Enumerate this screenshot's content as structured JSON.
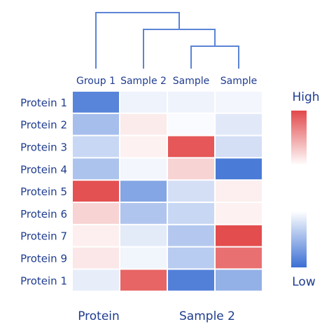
{
  "chart_data": {
    "type": "heatmap",
    "columns": [
      "Group 1",
      "Sample 2",
      "Sample",
      "Sample"
    ],
    "rows": [
      "Protein 1",
      "Protein 2",
      "Protein 3",
      "Protein 4",
      "Protein 5",
      "Protein 6",
      "Protein 7",
      "Protein 9",
      "Protein 1"
    ],
    "values": [
      [
        -0.85,
        -0.08,
        -0.08,
        -0.06
      ],
      [
        -0.45,
        0.1,
        -0.03,
        -0.15
      ],
      [
        -0.28,
        0.07,
        0.85,
        -0.22
      ],
      [
        -0.42,
        -0.06,
        0.22,
        -0.92
      ],
      [
        0.88,
        -0.62,
        -0.22,
        0.08
      ],
      [
        0.22,
        -0.4,
        -0.28,
        0.07
      ],
      [
        0.08,
        -0.14,
        -0.38,
        0.9
      ],
      [
        0.12,
        -0.07,
        -0.36,
        0.72
      ],
      [
        -0.12,
        0.78,
        -0.88,
        -0.55
      ]
    ],
    "colorbar": {
      "high_label": "High",
      "low_label": "Low",
      "high_color": "#e0393a",
      "mid_color": "#ffffff",
      "low_color": "#3a6fd4"
    },
    "bottom_labels": [
      "Protein",
      "Sample 2"
    ],
    "dendrogram": "columns: ((Sample 2, (Sample, Sample)), Group 1)",
    "line_color": "#5b84d6",
    "label_color": "#1f3c8f"
  }
}
